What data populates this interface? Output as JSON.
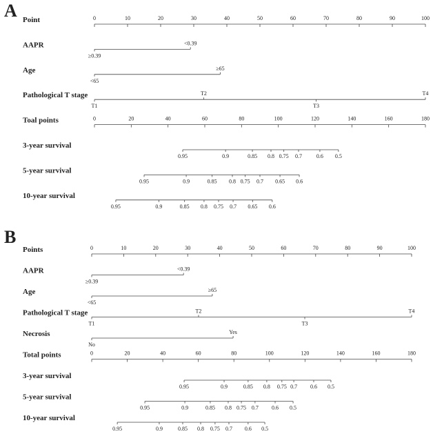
{
  "panels": [
    {
      "label": "A",
      "points_lim": [
        0,
        100
      ],
      "total_lim": [
        0,
        180
      ],
      "rows": [
        {
          "name": "Point",
          "axis": "points",
          "ticks": [
            0,
            10,
            20,
            30,
            40,
            50,
            60,
            70,
            80,
            90,
            100
          ]
        },
        {
          "name": "AAPR",
          "axis": "points",
          "ticks": [
            {
              "value": 29,
              "label": "<0.39",
              "side": "above"
            },
            {
              "value": 0,
              "label": "≥0.39",
              "side": "below"
            }
          ]
        },
        {
          "name": "Age",
          "axis": "points",
          "ticks": [
            {
              "value": 38,
              "label": "≥65",
              "side": "above"
            },
            {
              "value": 0,
              "label": "<65",
              "side": "below"
            }
          ]
        },
        {
          "name": "Pathological T stage",
          "axis": "points",
          "ticks": [
            {
              "value": 0,
              "label": "T1",
              "side": "below"
            },
            {
              "value": 33,
              "label": "T2",
              "side": "above"
            },
            {
              "value": 67,
              "label": "T3",
              "side": "below"
            },
            {
              "value": 100,
              "label": "T4",
              "side": "above"
            }
          ]
        },
        {
          "name": "Toal points",
          "axis": "total",
          "ticks": [
            0,
            20,
            40,
            60,
            80,
            100,
            120,
            140,
            160,
            180
          ]
        },
        {
          "name": "3-year survival",
          "axis": "total",
          "ticks": [
            {
              "value": 48,
              "label": "0.95",
              "side": "below"
            },
            {
              "value": 71.3,
              "label": "0.9",
              "side": "below"
            },
            {
              "value": 85.9,
              "label": "0.85",
              "side": "below"
            },
            {
              "value": 96,
              "label": "0.8",
              "side": "below"
            },
            {
              "value": 103,
              "label": "0.75",
              "side": "below"
            },
            {
              "value": 111,
              "label": "0.7",
              "side": "below"
            },
            {
              "value": 122.6,
              "label": "0.6",
              "side": "below"
            },
            {
              "value": 132.7,
              "label": "0.5",
              "side": "below"
            }
          ]
        },
        {
          "name": "5-year survival",
          "axis": "total",
          "ticks": [
            {
              "value": 27,
              "label": "0.95",
              "side": "below"
            },
            {
              "value": 49.9,
              "label": "0.9",
              "side": "below"
            },
            {
              "value": 64,
              "label": "0.85",
              "side": "below"
            },
            {
              "value": 75,
              "label": "0.8",
              "side": "below"
            },
            {
              "value": 82,
              "label": "0.75",
              "side": "below"
            },
            {
              "value": 90,
              "label": "0.7",
              "side": "below"
            },
            {
              "value": 100.9,
              "label": "0.65",
              "side": "below"
            },
            {
              "value": 111.4,
              "label": "0.6",
              "side": "below"
            }
          ]
        },
        {
          "name": "10-year survival",
          "axis": "total",
          "ticks": [
            {
              "value": 11.6,
              "label": "0.95",
              "side": "below"
            },
            {
              "value": 35,
              "label": "0.9",
              "side": "below"
            },
            {
              "value": 49,
              "label": "0.85",
              "side": "below"
            },
            {
              "value": 59.6,
              "label": "0.8",
              "side": "below"
            },
            {
              "value": 67.5,
              "label": "0.75",
              "side": "below"
            },
            {
              "value": 75.4,
              "label": "0.7",
              "side": "below"
            },
            {
              "value": 86,
              "label": "0.65",
              "side": "below"
            },
            {
              "value": 96.7,
              "label": "0.6",
              "side": "below"
            }
          ]
        }
      ]
    },
    {
      "label": "B",
      "points_lim": [
        0,
        100
      ],
      "total_lim": [
        0,
        180
      ],
      "rows": [
        {
          "name": "Points",
          "axis": "points",
          "ticks": [
            0,
            10,
            20,
            30,
            40,
            50,
            60,
            70,
            80,
            90,
            100
          ]
        },
        {
          "name": "AAPR",
          "axis": "points",
          "ticks": [
            {
              "value": 28.7,
              "label": "<0.39",
              "side": "above"
            },
            {
              "value": 0,
              "label": "≥0.39",
              "side": "below"
            }
          ]
        },
        {
          "name": "Age",
          "axis": "points",
          "ticks": [
            {
              "value": 37.7,
              "label": "≥65",
              "side": "above"
            },
            {
              "value": 0,
              "label": "<65",
              "side": "below"
            }
          ]
        },
        {
          "name": "Pathological T stage",
          "axis": "points",
          "ticks": [
            {
              "value": 0,
              "label": "T1",
              "side": "below"
            },
            {
              "value": 33.4,
              "label": "T2",
              "side": "above"
            },
            {
              "value": 66.6,
              "label": "T3",
              "side": "below"
            },
            {
              "value": 100,
              "label": "T4",
              "side": "above"
            }
          ]
        },
        {
          "name": "Necrosis",
          "axis": "points",
          "ticks": [
            {
              "value": 44.2,
              "label": "Yes",
              "side": "above"
            },
            {
              "value": 0,
              "label": "No",
              "side": "below"
            }
          ]
        },
        {
          "name": "Total points",
          "axis": "total",
          "ticks": [
            0,
            20,
            40,
            60,
            80,
            100,
            120,
            140,
            160,
            180
          ]
        },
        {
          "name": "3-year survival",
          "axis": "total",
          "ticks": [
            {
              "value": 52,
              "label": "0.95",
              "side": "below"
            },
            {
              "value": 74.5,
              "label": "0.9",
              "side": "below"
            },
            {
              "value": 88,
              "label": "0.85",
              "side": "below"
            },
            {
              "value": 98.5,
              "label": "0.8",
              "side": "below"
            },
            {
              "value": 107,
              "label": "0.75",
              "side": "below"
            },
            {
              "value": 113.7,
              "label": "0.7",
              "side": "below"
            },
            {
              "value": 124.9,
              "label": "0.6",
              "side": "below"
            },
            {
              "value": 134.6,
              "label": "0.5",
              "side": "below"
            }
          ]
        },
        {
          "name": "5-year survival",
          "axis": "total",
          "ticks": [
            {
              "value": 29.9,
              "label": "0.95",
              "side": "below"
            },
            {
              "value": 52.4,
              "label": "0.9",
              "side": "below"
            },
            {
              "value": 66.7,
              "label": "0.85",
              "side": "below"
            },
            {
              "value": 76.8,
              "label": "0.8",
              "side": "below"
            },
            {
              "value": 84.2,
              "label": "0.75",
              "side": "below"
            },
            {
              "value": 91.9,
              "label": "0.7",
              "side": "below"
            },
            {
              "value": 103.2,
              "label": "0.6",
              "side": "below"
            },
            {
              "value": 113.3,
              "label": "0.5",
              "side": "below"
            }
          ]
        },
        {
          "name": "10-year survival",
          "axis": "total",
          "ticks": [
            {
              "value": 14.4,
              "label": "0.95",
              "side": "below"
            },
            {
              "value": 38,
              "label": "0.9",
              "side": "below"
            },
            {
              "value": 51.2,
              "label": "0.85",
              "side": "below"
            },
            {
              "value": 61.3,
              "label": "0.8",
              "side": "below"
            },
            {
              "value": 69.4,
              "label": "0.75",
              "side": "below"
            },
            {
              "value": 77.2,
              "label": "0.7",
              "side": "below"
            },
            {
              "value": 88,
              "label": "0.6",
              "side": "below"
            },
            {
              "value": 97.4,
              "label": "0.5",
              "side": "below"
            }
          ]
        }
      ]
    }
  ]
}
